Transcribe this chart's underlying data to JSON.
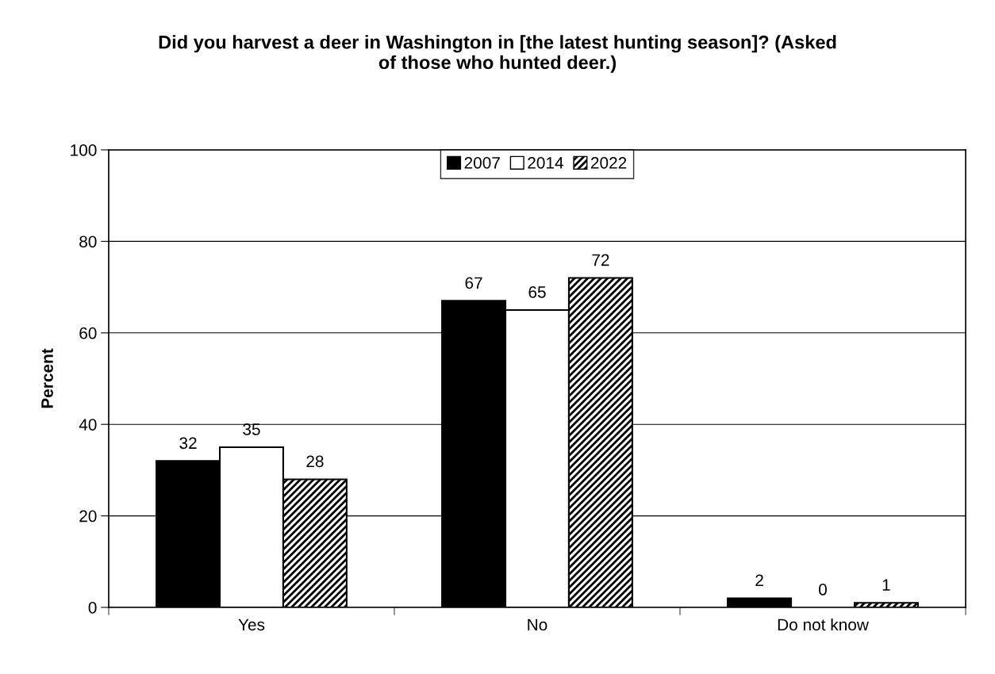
{
  "chart_data": {
    "type": "bar",
    "title": "Did you harvest a deer in Washington in [the latest hunting season]? (Asked of those who hunted deer.)",
    "ylabel": "Percent",
    "categories": [
      "Yes",
      "No",
      "Do not know"
    ],
    "series": [
      {
        "name": "2007",
        "color": "#000000",
        "values": [
          32,
          67,
          2
        ]
      },
      {
        "name": "2014",
        "color": "#ffffff",
        "values": [
          35,
          65,
          0
        ]
      },
      {
        "name": "2022",
        "color": "#000000",
        "values": [
          28,
          72,
          1
        ]
      }
    ],
    "ylim": [
      0,
      100
    ],
    "yticks": [
      0,
      20,
      40,
      60,
      80,
      100
    ],
    "grid": "y",
    "legend": "top",
    "data_labels": true
  }
}
